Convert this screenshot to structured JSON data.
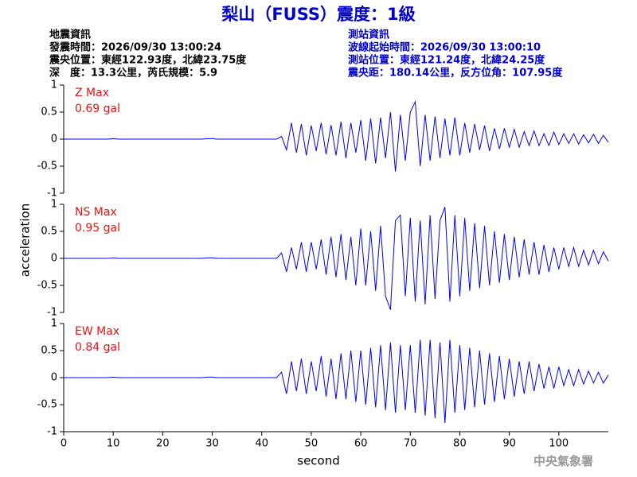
{
  "header": {
    "title": "梨山（FUSS）震度：1級",
    "left": [
      "地震資訊",
      "發震時間：2026/09/30 13:00:24",
      "震央位置：東經122.93度，北緯23.75度",
      "深　度：13.3公里，芮氏規模：5.9"
    ],
    "right": [
      "測站資訊",
      "波線起始時間：2026/09/30 13:00:10",
      "測站位置：東經121.24度，北緯24.25度",
      "震央距：180.14公里，反方位角：107.95度"
    ],
    "footer": "中央氣象署"
  },
  "chart_data": [
    {
      "type": "line",
      "title": "Z Max",
      "subtitle": "0.69 gal",
      "xlim": [
        0,
        110
      ],
      "ylim": [
        -1,
        1
      ],
      "yticks": [
        -1,
        -0.5,
        0,
        0.5,
        1
      ],
      "x": [
        0,
        1,
        2,
        3,
        4,
        5,
        6,
        7,
        8,
        9,
        10,
        11,
        12,
        13,
        14,
        15,
        16,
        17,
        18,
        19,
        20,
        21,
        22,
        23,
        24,
        25,
        26,
        27,
        28,
        29,
        30,
        31,
        32,
        33,
        34,
        35,
        36,
        37,
        38,
        39,
        40,
        41,
        42,
        43,
        44,
        45,
        46,
        47,
        48,
        49,
        50,
        51,
        52,
        53,
        54,
        55,
        56,
        57,
        58,
        59,
        60,
        61,
        62,
        63,
        64,
        65,
        66,
        67,
        68,
        69,
        70,
        71,
        72,
        73,
        74,
        75,
        76,
        77,
        78,
        79,
        80,
        81,
        82,
        83,
        84,
        85,
        86,
        87,
        88,
        89,
        90,
        91,
        92,
        93,
        94,
        95,
        96,
        97,
        98,
        99,
        100,
        101,
        102,
        103,
        104,
        105,
        106,
        107,
        108,
        109,
        110
      ],
      "series": [
        {
          "color": "#0000ff",
          "values": [
            0,
            0,
            0,
            0,
            0,
            0,
            0,
            0,
            0,
            0,
            0.01,
            0,
            0,
            0,
            0,
            0,
            0,
            0,
            0,
            0,
            0,
            0,
            0,
            0,
            0,
            0,
            0,
            0,
            0,
            0.01,
            0.01,
            0,
            0,
            0,
            0,
            0,
            0,
            0,
            0,
            0,
            0,
            0,
            0,
            0,
            0.05,
            -0.2,
            0.3,
            -0.25,
            0.28,
            -0.3,
            0.25,
            -0.22,
            0.3,
            -0.28,
            0.26,
            -0.3,
            0.32,
            -0.35,
            0.3,
            -0.25,
            0.35,
            -0.4,
            0.38,
            -0.45,
            0.4,
            -0.35,
            0.5,
            -0.6,
            0.45,
            -0.4,
            0.5,
            0.69,
            -0.5,
            0.45,
            -0.4,
            0.42,
            -0.35,
            0.38,
            -0.3,
            0.4,
            -0.3,
            0.3,
            -0.25,
            0.28,
            -0.2,
            0.25,
            -0.22,
            0.2,
            -0.18,
            0.2,
            -0.15,
            0.18,
            -0.15,
            0.14,
            -0.12,
            0.15,
            -0.12,
            0.1,
            -0.12,
            0.13,
            -0.1,
            0.1,
            -0.08,
            0.1,
            -0.09,
            0.08,
            -0.07,
            0.09,
            -0.08,
            0.07,
            -0.06
          ]
        }
      ]
    },
    {
      "type": "line",
      "title": "NS Max",
      "subtitle": "0.95 gal",
      "y_label": "acceleration",
      "xlim": [
        0,
        110
      ],
      "ylim": [
        -1,
        1
      ],
      "yticks": [
        -1,
        -0.5,
        0,
        0.5,
        1
      ],
      "x": [
        0,
        1,
        2,
        3,
        4,
        5,
        6,
        7,
        8,
        9,
        10,
        11,
        12,
        13,
        14,
        15,
        16,
        17,
        18,
        19,
        20,
        21,
        22,
        23,
        24,
        25,
        26,
        27,
        28,
        29,
        30,
        31,
        32,
        33,
        34,
        35,
        36,
        37,
        38,
        39,
        40,
        41,
        42,
        43,
        44,
        45,
        46,
        47,
        48,
        49,
        50,
        51,
        52,
        53,
        54,
        55,
        56,
        57,
        58,
        59,
        60,
        61,
        62,
        63,
        64,
        65,
        66,
        67,
        68,
        69,
        70,
        71,
        72,
        73,
        74,
        75,
        76,
        77,
        78,
        79,
        80,
        81,
        82,
        83,
        84,
        85,
        86,
        87,
        88,
        89,
        90,
        91,
        92,
        93,
        94,
        95,
        96,
        97,
        98,
        99,
        100,
        101,
        102,
        103,
        104,
        105,
        106,
        107,
        108,
        109,
        110
      ],
      "series": [
        {
          "color": "#0000ff",
          "values": [
            0,
            0,
            0,
            0,
            0,
            0,
            0,
            0,
            0,
            0,
            0.01,
            0,
            0,
            0,
            0,
            0,
            0,
            0,
            0,
            0,
            0,
            0,
            0,
            0,
            0,
            0,
            0,
            0,
            0,
            0.01,
            0.01,
            0,
            0,
            0,
            0,
            0,
            0,
            0,
            0,
            0,
            0,
            0,
            0,
            0,
            0.1,
            -0.25,
            0.2,
            -0.2,
            0.3,
            -0.25,
            0.3,
            -0.2,
            0.35,
            -0.3,
            0.4,
            -0.35,
            0.45,
            -0.4,
            0.4,
            -0.5,
            0.55,
            -0.5,
            0.5,
            -0.6,
            0.6,
            -0.7,
            -0.95,
            0.7,
            0.8,
            -0.7,
            0.75,
            -0.8,
            0.7,
            -0.85,
            0.8,
            -0.75,
            0.7,
            0.95,
            -0.8,
            0.8,
            -0.7,
            0.75,
            -0.6,
            0.65,
            -0.55,
            0.6,
            -0.5,
            0.5,
            -0.45,
            0.45,
            -0.4,
            0.4,
            -0.35,
            0.35,
            -0.3,
            0.3,
            -0.3,
            0.25,
            -0.25,
            0.2,
            -0.2,
            0.2,
            -0.15,
            0.2,
            -0.15,
            0.15,
            -0.12,
            0.15,
            -0.1,
            0.12,
            -0.05
          ]
        }
      ]
    },
    {
      "type": "line",
      "title": "EW Max",
      "subtitle": "0.84 gal",
      "x_label": "second",
      "xlim": [
        0,
        110
      ],
      "ylim": [
        -1,
        1
      ],
      "yticks": [
        -1,
        -0.5,
        0,
        0.5,
        1
      ],
      "xticks": [
        0,
        10,
        20,
        30,
        40,
        50,
        60,
        70,
        80,
        90,
        100
      ],
      "x": [
        0,
        1,
        2,
        3,
        4,
        5,
        6,
        7,
        8,
        9,
        10,
        11,
        12,
        13,
        14,
        15,
        16,
        17,
        18,
        19,
        20,
        21,
        22,
        23,
        24,
        25,
        26,
        27,
        28,
        29,
        30,
        31,
        32,
        33,
        34,
        35,
        36,
        37,
        38,
        39,
        40,
        41,
        42,
        43,
        44,
        45,
        46,
        47,
        48,
        49,
        50,
        51,
        52,
        53,
        54,
        55,
        56,
        57,
        58,
        59,
        60,
        61,
        62,
        63,
        64,
        65,
        66,
        67,
        68,
        69,
        70,
        71,
        72,
        73,
        74,
        75,
        76,
        77,
        78,
        79,
        80,
        81,
        82,
        83,
        84,
        85,
        86,
        87,
        88,
        89,
        90,
        91,
        92,
        93,
        94,
        95,
        96,
        97,
        98,
        99,
        100,
        101,
        102,
        103,
        104,
        105,
        106,
        107,
        108,
        109,
        110
      ],
      "series": [
        {
          "color": "#0000ff",
          "values": [
            0,
            0,
            0,
            0,
            0,
            0,
            0,
            0,
            0,
            0,
            0.01,
            0,
            0,
            0,
            0,
            0,
            0,
            0,
            0,
            0,
            0,
            0,
            0,
            0,
            0,
            0,
            0,
            0,
            0,
            0.01,
            0.01,
            0,
            0,
            0,
            0,
            0,
            0,
            0,
            0,
            0,
            0,
            0,
            0,
            0,
            0.1,
            -0.3,
            0.3,
            -0.25,
            0.35,
            -0.3,
            0.3,
            -0.25,
            0.4,
            -0.35,
            0.35,
            -0.4,
            0.45,
            -0.4,
            0.5,
            -0.45,
            0.5,
            -0.5,
            0.55,
            -0.55,
            0.6,
            -0.6,
            0.65,
            -0.65,
            0.6,
            -0.6,
            0.6,
            -0.65,
            0.7,
            -0.7,
            0.7,
            -0.75,
            0.65,
            -0.84,
            0.7,
            -0.65,
            0.6,
            -0.6,
            0.55,
            -0.55,
            0.5,
            -0.5,
            0.45,
            -0.45,
            0.4,
            -0.4,
            0.35,
            -0.35,
            0.3,
            -0.3,
            0.3,
            -0.25,
            0.25,
            -0.2,
            0.2,
            -0.2,
            0.2,
            -0.15,
            0.15,
            -0.15,
            0.15,
            -0.12,
            0.12,
            -0.1,
            0.1,
            -0.1,
            0.05
          ]
        }
      ]
    }
  ]
}
